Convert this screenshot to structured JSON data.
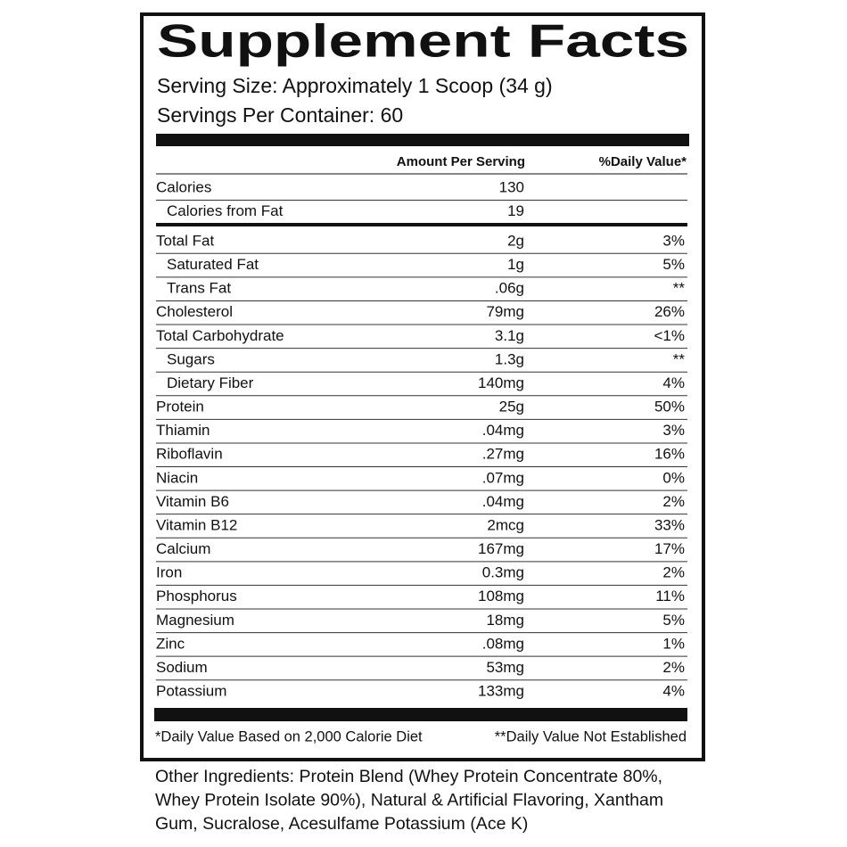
{
  "title": "Supplement Facts",
  "serving_size": "Serving Size: Approximately 1 Scoop (34 g)",
  "servings_per_container": "Servings Per Container: 60",
  "table": {
    "header": [
      "Amount Per Serving",
      "%Daily Value*"
    ],
    "rows": [
      [
        "Calories",
        "130"
      ],
      [
        "Calories from Fat",
        "19"
      ],
      [
        "Total Fat",
        "2g",
        "3%"
      ],
      [
        "Saturated Fat",
        "1g",
        "5%"
      ],
      [
        "Trans Fat",
        ".06g",
        "**"
      ],
      [
        "Cholesterol",
        "79mg",
        "26%"
      ],
      [
        "Total Carbohydrate",
        "3.1g",
        "<1%"
      ],
      [
        "Sugars",
        "1.3g",
        "**"
      ],
      [
        "Dietary Fiber",
        "140mg",
        "4%"
      ],
      [
        "Protein",
        "25g",
        "50%"
      ],
      [
        "Thiamin",
        ".04mg",
        "3%"
      ],
      [
        "Riboflavin",
        ".27mg",
        "16%"
      ],
      [
        "Niacin",
        ".07mg",
        "0%"
      ],
      [
        "Vitamin B6",
        ".04mg",
        "2%"
      ],
      [
        "Vitamin B12",
        "2mcg",
        "33%"
      ],
      [
        "Calcium",
        "167mg",
        "17%"
      ],
      [
        "Iron",
        "0.3mg",
        "2%"
      ],
      [
        "Phosphorus",
        "108mg",
        "11%"
      ],
      [
        "Magnesium",
        "18mg",
        "5%"
      ],
      [
        "Zinc",
        ".08mg",
        "1%"
      ],
      [
        "Sodium",
        "53mg",
        "2%"
      ],
      [
        "Potassium",
        "133mg",
        "4%"
      ]
    ]
  },
  "footnotes": [
    "*Daily Value Based on 2,000 Calorie Diet",
    "**Daily Value Not Established"
  ],
  "other_ingredients": [
    "Other Ingredients: Protein Blend (Whey Protein Concentrate 80%,",
    "Whey Protein Isolate 90%), Natural & Artificial Flavoring, Xantham",
    "Gum, Sucralose, Acesulfame Potassium (Ace K)"
  ]
}
